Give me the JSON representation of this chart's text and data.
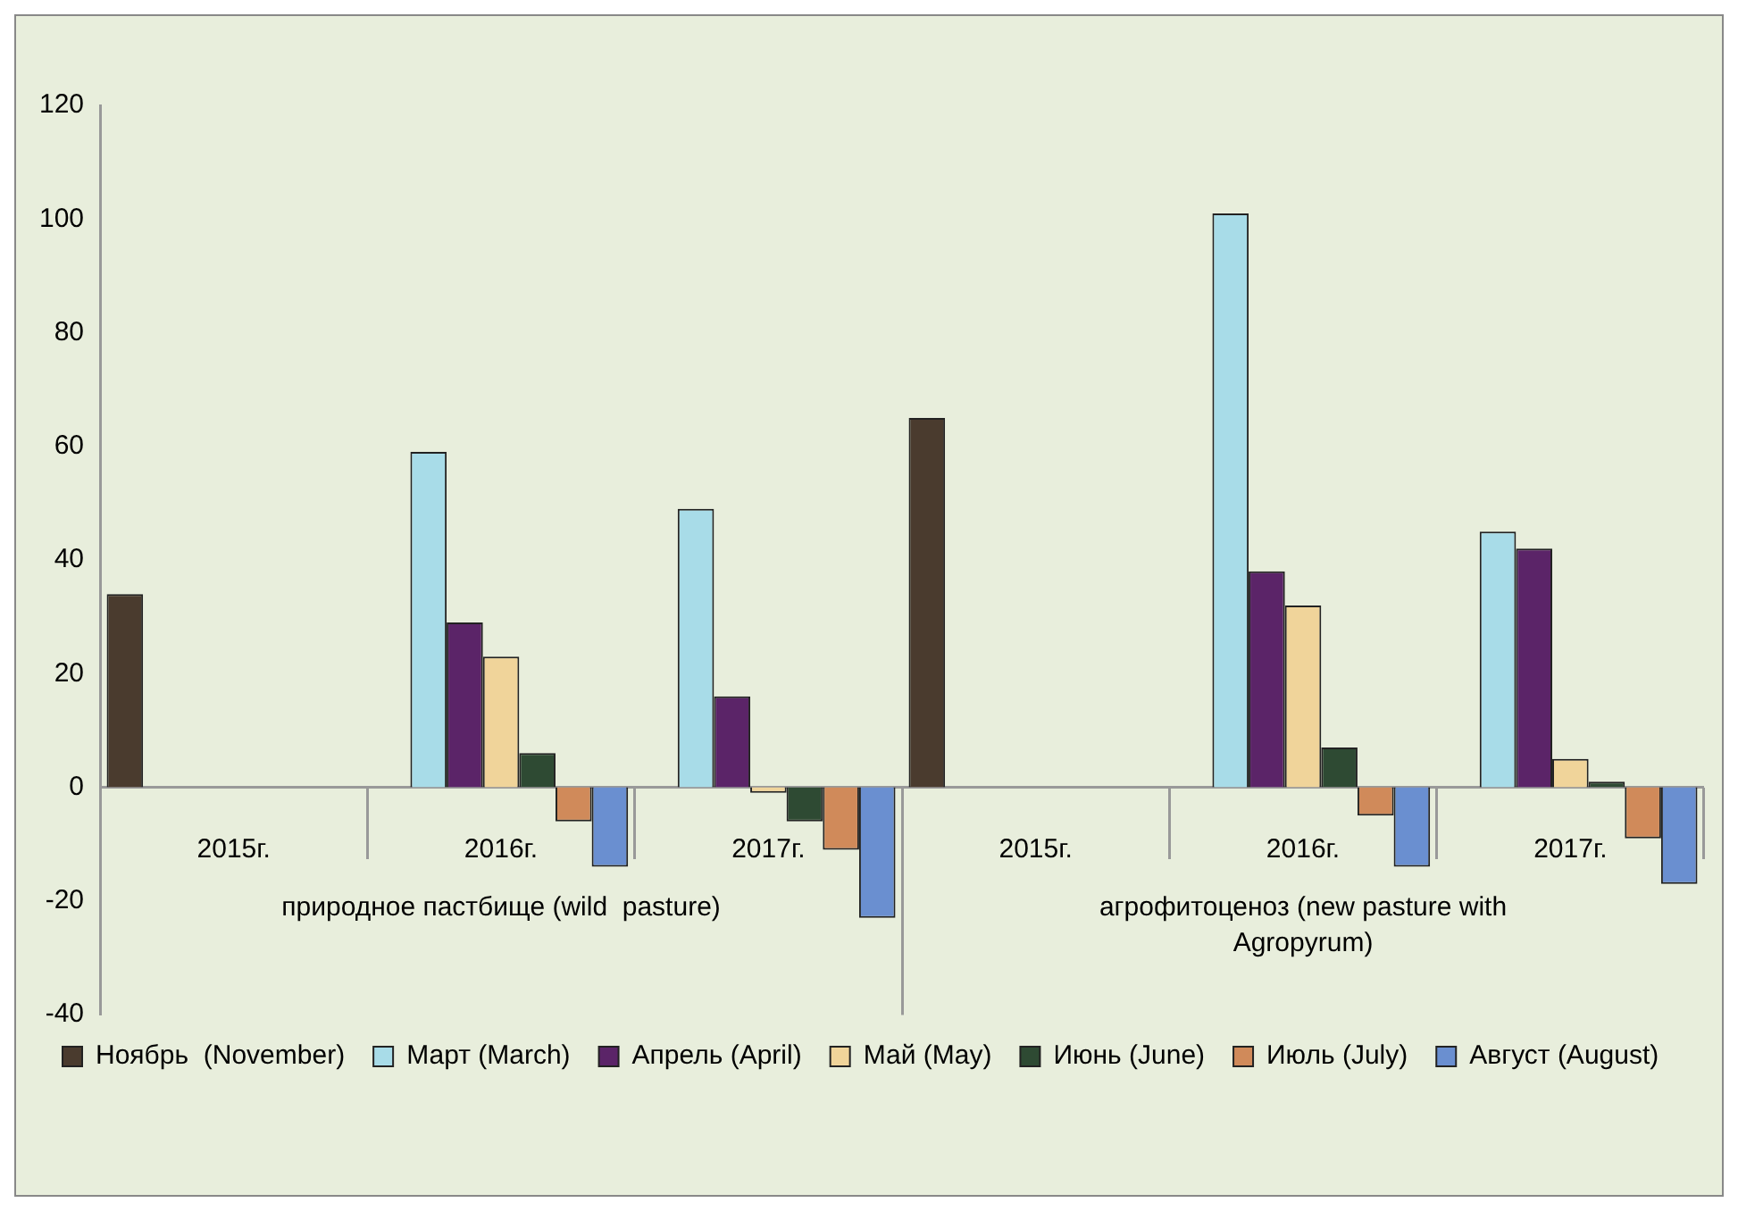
{
  "chart_data": {
    "type": "bar",
    "categories": [
      "2015г.",
      "2016г.",
      "2017г.",
      "2015г.",
      "2016г.",
      "2017г."
    ],
    "annotations": [
      "природное пастбище (wild  pasture)",
      "агрофитоценоз (new pasture with Agropyrum)"
    ],
    "series": [
      {
        "name": "Ноябрь  (November)",
        "color": "#4a3b2e",
        "values": [
          34,
          null,
          null,
          65,
          null,
          null
        ]
      },
      {
        "name": "Март (March)",
        "color": "#a8dce8",
        "values": [
          null,
          59,
          49,
          null,
          101,
          45
        ]
      },
      {
        "name": "Апрель (April)",
        "color": "#5b2468",
        "values": [
          null,
          29,
          16,
          null,
          38,
          42
        ]
      },
      {
        "name": "Май (May)",
        "color": "#f0d49a",
        "values": [
          null,
          23,
          -1,
          null,
          32,
          5
        ]
      },
      {
        "name": "Июнь (June)",
        "color": "#2e4a33",
        "values": [
          null,
          6,
          -6,
          null,
          7,
          1
        ]
      },
      {
        "name": "Июль (July)",
        "color": "#d08a5a",
        "values": [
          null,
          -6,
          -11,
          null,
          -5,
          -9
        ]
      },
      {
        "name": "Август (August)",
        "color": "#6a8fd0",
        "values": [
          null,
          -14,
          -23,
          null,
          -14,
          -17
        ]
      }
    ],
    "ylim": [
      -40,
      120
    ],
    "yticks": [
      -40,
      -20,
      0,
      20,
      40,
      60,
      80,
      100,
      120
    ],
    "grid": false,
    "legend": "bottom"
  }
}
